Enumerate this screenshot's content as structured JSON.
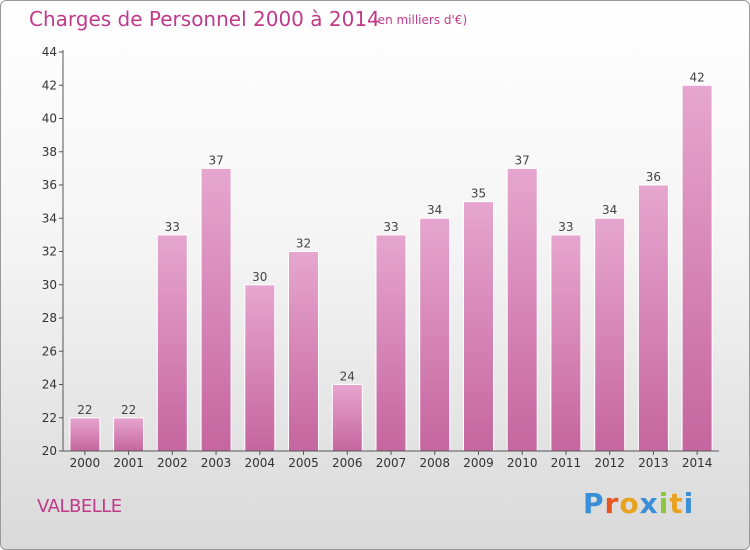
{
  "header": {
    "title": "Charges de Personnel 2000 à 2014",
    "subtitle": "(en milliers d'€)"
  },
  "footer": {
    "commune": "VALBELLE",
    "brand": "Proxiti",
    "brand_colors": [
      "#3a8fd6",
      "#e8551e",
      "#e8a21e",
      "#3a8fd6",
      "#8cc63f",
      "#e8a21e",
      "#3a8fd6"
    ]
  },
  "colors": {
    "bar": "#c6659f",
    "bar_light": "#e6a6cf",
    "accent": "#c03a8a"
  },
  "chart_data": {
    "type": "bar",
    "title": "Charges de Personnel 2000 à 2014",
    "subtitle": "(en milliers d'€)",
    "categories": [
      "2000",
      "2001",
      "2002",
      "2003",
      "2004",
      "2005",
      "2006",
      "2007",
      "2008",
      "2009",
      "2010",
      "2011",
      "2012",
      "2013",
      "2014"
    ],
    "values": [
      22,
      22,
      33,
      37,
      30,
      32,
      24,
      33,
      34,
      35,
      37,
      33,
      34,
      36,
      42
    ],
    "xlabel": "",
    "ylabel": "",
    "ylim": [
      20,
      44
    ],
    "yticks": [
      20,
      22,
      24,
      26,
      28,
      30,
      32,
      34,
      36,
      38,
      40,
      42,
      44
    ],
    "grid": false,
    "data_labels": true
  }
}
